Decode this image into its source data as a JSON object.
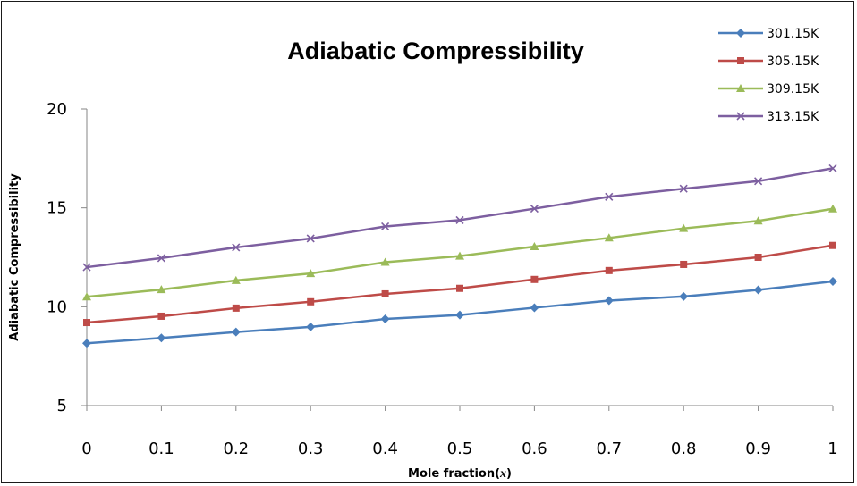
{
  "chart_data": {
    "type": "line",
    "title": "Adiabatic Compressibility",
    "xlabel": "Mole fraction(x)",
    "xlabel_main": "Mole fraction(",
    "xlabel_var": "x",
    "xlabel_close": ")",
    "ylabel": "Adiabatic Compressibility",
    "xlim": [
      0,
      1
    ],
    "ylim": [
      5,
      20
    ],
    "xticks": [
      "0",
      "0.1",
      "0.2",
      "0.3",
      "0.4",
      "0.5",
      "0.6",
      "0.7",
      "0.8",
      "0.9",
      "1"
    ],
    "yticks": [
      "5",
      "10",
      "15",
      "20"
    ],
    "x": [
      0,
      0.1,
      0.2,
      0.3,
      0.4,
      0.5,
      0.6,
      0.7,
      0.8,
      0.9,
      1
    ],
    "grid": false,
    "legend_position": "top-right",
    "series": [
      {
        "name": "301.15K",
        "color": "#4a7ebb",
        "marker": "diamond",
        "values": [
          8.15,
          8.42,
          8.72,
          8.98,
          9.38,
          9.58,
          9.95,
          10.31,
          10.52,
          10.85,
          11.28
        ]
      },
      {
        "name": "305.15K",
        "color": "#be4b48",
        "marker": "square",
        "values": [
          9.2,
          9.52,
          9.93,
          10.25,
          10.65,
          10.93,
          11.38,
          11.83,
          12.14,
          12.5,
          13.1
        ]
      },
      {
        "name": "309.15K",
        "color": "#9bbb59",
        "marker": "triangle",
        "values": [
          10.5,
          10.87,
          11.33,
          11.68,
          12.25,
          12.56,
          13.04,
          13.48,
          13.96,
          14.34,
          14.95
        ]
      },
      {
        "name": "313.15K",
        "color": "#7d5fa0",
        "marker": "x",
        "values": [
          12.0,
          12.46,
          13.0,
          13.45,
          14.06,
          14.38,
          14.96,
          15.56,
          15.97,
          16.35,
          17.0
        ]
      }
    ]
  }
}
